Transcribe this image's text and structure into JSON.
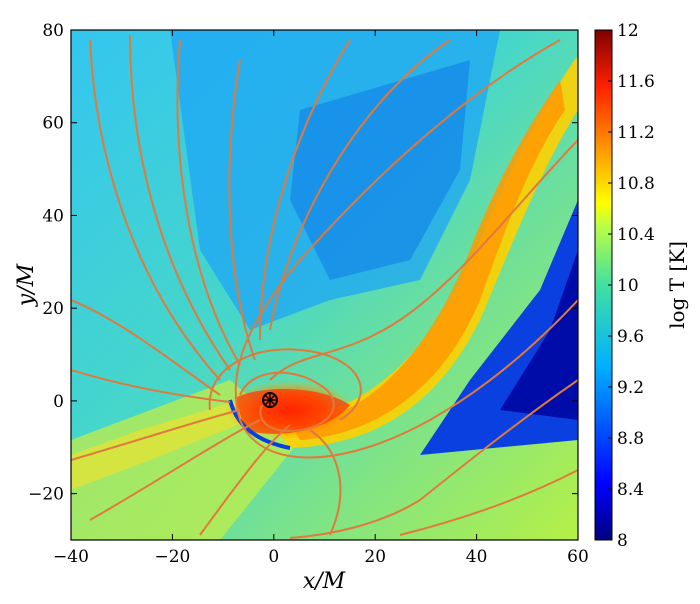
{
  "chart_data": {
    "type": "heatmap",
    "xlabel": "x/M",
    "ylabel": "y/M",
    "xlim": [
      -40,
      60
    ],
    "ylim": [
      -30,
      80
    ],
    "x_ticks": [
      "−40",
      "−20",
      "0",
      "20",
      "40",
      "60"
    ],
    "x_tick_values": [
      -40,
      -20,
      0,
      20,
      40,
      60
    ],
    "y_ticks": [
      "−20",
      "0",
      "20",
      "40",
      "60",
      "80"
    ],
    "y_tick_values": [
      -20,
      0,
      20,
      40,
      60,
      80
    ],
    "colorbar": {
      "label": "log T [K]",
      "range": [
        8,
        12
      ],
      "tick_values": [
        8,
        8.4,
        8.8,
        9.2,
        9.6,
        10,
        10.4,
        10.8,
        11.2,
        11.6,
        12
      ],
      "ticks": [
        "8",
        "8.4",
        "8.8",
        "9.2",
        "9.6",
        "10",
        "10.4",
        "10.8",
        "11.2",
        "11.6",
        "12"
      ],
      "colormap": "jet"
    },
    "overlay": "streamlines",
    "streamline_color": "#e07a3c",
    "central_object": {
      "x": 0,
      "y": 0
    },
    "grid": false
  }
}
